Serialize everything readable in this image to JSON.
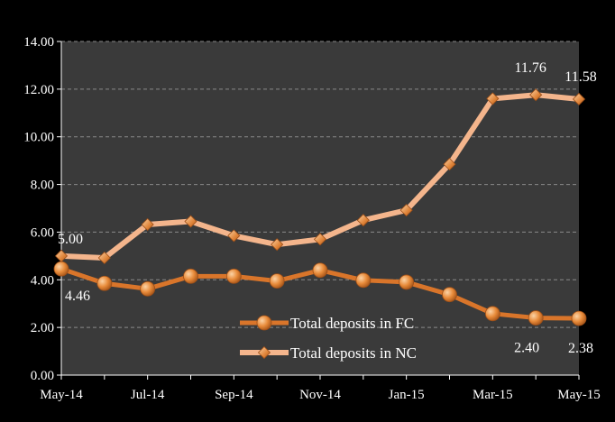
{
  "chart_data": {
    "type": "line",
    "title": "",
    "xlabel": "",
    "ylabel": "",
    "ylim": [
      0,
      14
    ],
    "y_ticks": [
      "0.00",
      "2.00",
      "4.00",
      "6.00",
      "8.00",
      "10.00",
      "12.00",
      "14.00"
    ],
    "x": [
      "May-14",
      "Jun-14",
      "Jul-14",
      "Aug-14",
      "Sep-14",
      "Oct-14",
      "Nov-14",
      "Dec-14",
      "Jan-15",
      "Feb-15",
      "Mar-15",
      "Apr-15",
      "May-15"
    ],
    "x_tick_labels": [
      "May-14",
      "Jul-14",
      "Sep-14",
      "Nov-14",
      "Jan-15",
      "Mar-15",
      "May-15"
    ],
    "grid": true,
    "legend_position": "bottom-right",
    "series": [
      {
        "name": "Total deposits in FC",
        "marker": "circle",
        "color": "#E07B2A",
        "values": [
          4.46,
          3.85,
          3.62,
          4.15,
          4.15,
          3.95,
          4.4,
          3.98,
          3.9,
          3.38,
          2.58,
          2.4,
          2.38
        ],
        "labels": [
          {
            "index": 0,
            "text": "4.46"
          },
          {
            "index": 11,
            "text": "2.40"
          },
          {
            "index": 12,
            "text": "2.38"
          }
        ]
      },
      {
        "name": "Total deposits in NC",
        "marker": "diamond",
        "color": "#F4B183",
        "values": [
          5.0,
          4.92,
          6.32,
          6.45,
          5.85,
          5.48,
          5.7,
          6.5,
          6.92,
          8.85,
          11.6,
          11.76,
          11.58
        ],
        "labels": [
          {
            "index": 0,
            "text": "5.00"
          },
          {
            "index": 11,
            "text": "11.76"
          },
          {
            "index": 12,
            "text": "11.58"
          }
        ]
      }
    ]
  }
}
